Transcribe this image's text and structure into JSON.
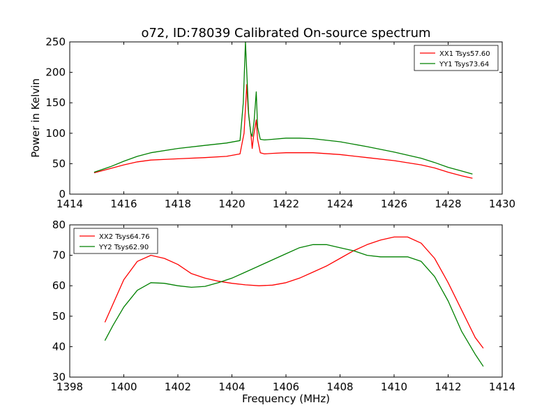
{
  "chart_data": [
    {
      "type": "line",
      "title": "o72, ID:78039 Calibrated On-source spectrum",
      "xlabel": "",
      "ylabel": "Power in Kelvin",
      "xlim": [
        1414,
        1430
      ],
      "ylim": [
        0,
        250
      ],
      "xticks": [
        "1414",
        "1416",
        "1418",
        "1420",
        "1422",
        "1424",
        "1426",
        "1428",
        "1430"
      ],
      "yticks": [
        "0",
        "50",
        "100",
        "150",
        "200",
        "250"
      ],
      "legend_position": "top-right",
      "grid": false,
      "series": [
        {
          "name": "XX1 Tsys57.60",
          "color": "#ff0000",
          "x": [
            1414.9,
            1415.5,
            1416.0,
            1416.5,
            1417.0,
            1418.0,
            1419.0,
            1419.8,
            1420.3,
            1420.45,
            1420.55,
            1420.6,
            1420.7,
            1420.75,
            1420.8,
            1420.9,
            1420.95,
            1421.05,
            1421.2,
            1421.5,
            1422.0,
            1422.5,
            1423.0,
            1424.0,
            1425.0,
            1426.0,
            1427.0,
            1427.5,
            1428.0,
            1428.5,
            1428.9
          ],
          "values": [
            35,
            42,
            48,
            53,
            56,
            58,
            60,
            62,
            66,
            100,
            180,
            140,
            100,
            75,
            95,
            122,
            90,
            68,
            66,
            67,
            68,
            68,
            68,
            65,
            60,
            55,
            48,
            43,
            36,
            30,
            26
          ]
        },
        {
          "name": "YY1 Tsys73.64",
          "color": "#008000",
          "x": [
            1414.9,
            1415.5,
            1416.0,
            1416.5,
            1417.0,
            1418.0,
            1419.0,
            1419.8,
            1420.3,
            1420.42,
            1420.5,
            1420.55,
            1420.62,
            1420.7,
            1420.75,
            1420.82,
            1420.9,
            1420.95,
            1421.05,
            1421.2,
            1421.5,
            1422.0,
            1422.5,
            1423.0,
            1424.0,
            1425.0,
            1426.0,
            1427.0,
            1427.5,
            1428.0,
            1428.5,
            1428.9
          ],
          "values": [
            36,
            45,
            54,
            62,
            68,
            75,
            80,
            84,
            88,
            150,
            250,
            200,
            130,
            100,
            95,
            120,
            168,
            110,
            90,
            89,
            90,
            92,
            92,
            91,
            86,
            78,
            69,
            59,
            52,
            44,
            38,
            33
          ]
        }
      ]
    },
    {
      "type": "line",
      "title": "",
      "xlabel": "Frequency (MHz)",
      "ylabel": "",
      "xlim": [
        1398,
        1414
      ],
      "ylim": [
        30,
        80
      ],
      "xticks": [
        "1398",
        "1400",
        "1402",
        "1404",
        "1406",
        "1408",
        "1410",
        "1412",
        "1414"
      ],
      "yticks": [
        "30",
        "40",
        "50",
        "60",
        "70",
        "80"
      ],
      "legend_position": "top-left",
      "grid": false,
      "series": [
        {
          "name": "XX2 Tsys64.76",
          "color": "#ff0000",
          "x": [
            1399.3,
            1399.6,
            1400.0,
            1400.5,
            1401.0,
            1401.5,
            1402.0,
            1402.5,
            1403.0,
            1403.5,
            1404.0,
            1404.5,
            1405.0,
            1405.5,
            1406.0,
            1406.5,
            1407.0,
            1407.5,
            1408.0,
            1408.5,
            1409.0,
            1409.5,
            1410.0,
            1410.5,
            1411.0,
            1411.5,
            1412.0,
            1412.5,
            1413.0,
            1413.3
          ],
          "values": [
            48,
            54,
            62,
            68,
            70,
            69,
            67,
            64,
            62.5,
            61.5,
            60.8,
            60.3,
            60,
            60.2,
            61,
            62.5,
            64.5,
            66.5,
            69,
            71.5,
            73.5,
            75,
            76,
            76,
            74,
            69,
            61,
            52,
            43,
            39.5
          ]
        },
        {
          "name": "YY2 Tsys62.90",
          "color": "#008000",
          "x": [
            1399.3,
            1399.6,
            1400.0,
            1400.5,
            1401.0,
            1401.5,
            1402.0,
            1402.5,
            1403.0,
            1403.5,
            1404.0,
            1404.5,
            1405.0,
            1405.5,
            1406.0,
            1406.5,
            1407.0,
            1407.5,
            1408.0,
            1408.5,
            1409.0,
            1409.5,
            1410.0,
            1410.5,
            1411.0,
            1411.5,
            1412.0,
            1412.5,
            1413.0,
            1413.3
          ],
          "values": [
            42,
            47,
            53,
            58.5,
            61,
            60.8,
            60,
            59.5,
            59.8,
            61,
            62.5,
            64.5,
            66.5,
            68.5,
            70.5,
            72.5,
            73.5,
            73.5,
            72.5,
            71.5,
            70,
            69.5,
            69.5,
            69.5,
            68,
            63,
            55,
            45,
            37.5,
            33.5
          ]
        }
      ]
    }
  ]
}
